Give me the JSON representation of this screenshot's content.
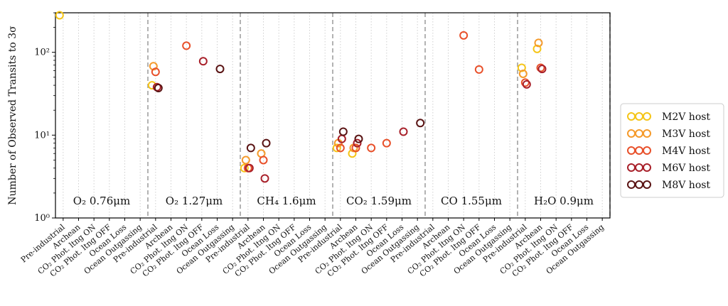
{
  "chart_data": {
    "type": "scatter",
    "title": "",
    "ylabel": "Number of Observed Transits to 3σ",
    "yscale": "log",
    "ylim": [
      1,
      300
    ],
    "yticks": [
      1,
      10,
      100
    ],
    "ytick_labels": [
      "10⁰",
      "10¹",
      "10²"
    ],
    "grid": "x-minor-dotted",
    "legend_position": "right",
    "scenarios": [
      "Pre-industrial",
      "Archean",
      "CO₂ Phot. ltng ON",
      "CO₂ Phot. ltng OFF",
      "Ocean Loss",
      "Ocean Outgassing"
    ],
    "panels": [
      {
        "molecule": "O₂",
        "wavelength": "0.76μm",
        "label": "O₂ 0.76μm"
      },
      {
        "molecule": "O₂",
        "wavelength": "1.27μm",
        "label": "O₂ 1.27μm"
      },
      {
        "molecule": "CH₄",
        "wavelength": "1.6μm",
        "label": "CH₄ 1.6μm"
      },
      {
        "molecule": "CO₂",
        "wavelength": "1.59μm",
        "label": "CO₂ 1.59μm"
      },
      {
        "molecule": "CO",
        "wavelength": "1.55μm",
        "label": "CO 1.55μm"
      },
      {
        "molecule": "H₂O",
        "wavelength": "0.9μm",
        "label": "H₂O 0.9μm"
      }
    ],
    "series": [
      {
        "name": "M2V host",
        "color": "#f5c518",
        "points": [
          {
            "panel": 0,
            "scenario": 0,
            "y": 280
          },
          {
            "panel": 1,
            "scenario": 0,
            "y": 40
          },
          {
            "panel": 2,
            "scenario": 0,
            "y": 4
          },
          {
            "panel": 3,
            "scenario": 0,
            "y": 7
          },
          {
            "panel": 3,
            "scenario": 1,
            "y": 6
          },
          {
            "panel": 5,
            "scenario": 0,
            "y": 65
          },
          {
            "panel": 5,
            "scenario": 1,
            "y": 110
          }
        ]
      },
      {
        "name": "M3V host",
        "color": "#f59a2a",
        "points": [
          {
            "panel": 1,
            "scenario": 0,
            "y": 68
          },
          {
            "panel": 2,
            "scenario": 0,
            "y": 5
          },
          {
            "panel": 2,
            "scenario": 1,
            "y": 6
          },
          {
            "panel": 3,
            "scenario": 0,
            "y": 8
          },
          {
            "panel": 3,
            "scenario": 1,
            "y": 7
          },
          {
            "panel": 5,
            "scenario": 0,
            "y": 55
          },
          {
            "panel": 5,
            "scenario": 1,
            "y": 130
          }
        ]
      },
      {
        "name": "M4V host",
        "color": "#e8502a",
        "points": [
          {
            "panel": 1,
            "scenario": 0,
            "y": 58
          },
          {
            "panel": 1,
            "scenario": 2,
            "y": 120
          },
          {
            "panel": 2,
            "scenario": 0,
            "y": 4
          },
          {
            "panel": 2,
            "scenario": 1,
            "y": 5
          },
          {
            "panel": 3,
            "scenario": 0,
            "y": 7
          },
          {
            "panel": 3,
            "scenario": 1,
            "y": 7
          },
          {
            "panel": 3,
            "scenario": 2,
            "y": 7
          },
          {
            "panel": 3,
            "scenario": 3,
            "y": 8
          },
          {
            "panel": 4,
            "scenario": 2,
            "y": 160
          },
          {
            "panel": 4,
            "scenario": 3,
            "y": 62
          },
          {
            "panel": 5,
            "scenario": 0,
            "y": 43
          },
          {
            "panel": 5,
            "scenario": 1,
            "y": 65
          }
        ]
      },
      {
        "name": "M6V host",
        "color": "#a8202a",
        "points": [
          {
            "panel": 1,
            "scenario": 0,
            "y": 38
          },
          {
            "panel": 1,
            "scenario": 3,
            "y": 78
          },
          {
            "panel": 2,
            "scenario": 0,
            "y": 4
          },
          {
            "panel": 2,
            "scenario": 1,
            "y": 3
          },
          {
            "panel": 3,
            "scenario": 0,
            "y": 9
          },
          {
            "panel": 3,
            "scenario": 1,
            "y": 8
          },
          {
            "panel": 3,
            "scenario": 4,
            "y": 11
          },
          {
            "panel": 5,
            "scenario": 0,
            "y": 41
          },
          {
            "panel": 5,
            "scenario": 1,
            "y": 63
          }
        ]
      },
      {
        "name": "M8V host",
        "color": "#5a1414",
        "points": [
          {
            "panel": 1,
            "scenario": 0,
            "y": 37
          },
          {
            "panel": 1,
            "scenario": 4,
            "y": 63
          },
          {
            "panel": 2,
            "scenario": 0,
            "y": 7
          },
          {
            "panel": 2,
            "scenario": 1,
            "y": 8
          },
          {
            "panel": 3,
            "scenario": 0,
            "y": 11
          },
          {
            "panel": 3,
            "scenario": 1,
            "y": 9
          },
          {
            "panel": 3,
            "scenario": 5,
            "y": 14
          }
        ]
      }
    ]
  }
}
